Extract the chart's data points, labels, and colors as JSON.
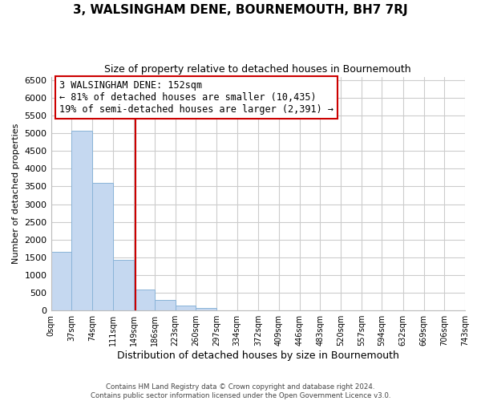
{
  "title": "3, WALSINGHAM DENE, BOURNEMOUTH, BH7 7RJ",
  "subtitle": "Size of property relative to detached houses in Bournemouth",
  "xlabel": "Distribution of detached houses by size in Bournemouth",
  "ylabel": "Number of detached properties",
  "bar_edges": [
    0,
    37,
    74,
    111,
    149,
    186,
    223,
    260,
    297,
    334,
    372,
    409,
    446,
    483,
    520,
    557,
    594,
    632,
    669,
    706,
    743
  ],
  "bar_heights": [
    1650,
    5080,
    3600,
    1420,
    580,
    295,
    145,
    60,
    0,
    0,
    0,
    0,
    0,
    0,
    0,
    0,
    0,
    0,
    0,
    0
  ],
  "bar_color": "#c5d8f0",
  "bar_edge_color": "#8ab4d8",
  "property_line_x": 152,
  "property_line_color": "#cc0000",
  "ylim": [
    0,
    6600
  ],
  "yticks": [
    0,
    500,
    1000,
    1500,
    2000,
    2500,
    3000,
    3500,
    4000,
    4500,
    5000,
    5500,
    6000,
    6500
  ],
  "xtick_labels": [
    "0sqm",
    "37sqm",
    "74sqm",
    "111sqm",
    "149sqm",
    "186sqm",
    "223sqm",
    "260sqm",
    "297sqm",
    "334sqm",
    "372sqm",
    "409sqm",
    "446sqm",
    "483sqm",
    "520sqm",
    "557sqm",
    "594sqm",
    "632sqm",
    "669sqm",
    "706sqm",
    "743sqm"
  ],
  "annotation_title": "3 WALSINGHAM DENE: 152sqm",
  "annotation_line1": "← 81% of detached houses are smaller (10,435)",
  "annotation_line2": "19% of semi-detached houses are larger (2,391) →",
  "footer_line1": "Contains HM Land Registry data © Crown copyright and database right 2024.",
  "footer_line2": "Contains public sector information licensed under the Open Government Licence v3.0.",
  "background_color": "#ffffff",
  "grid_color": "#cccccc"
}
